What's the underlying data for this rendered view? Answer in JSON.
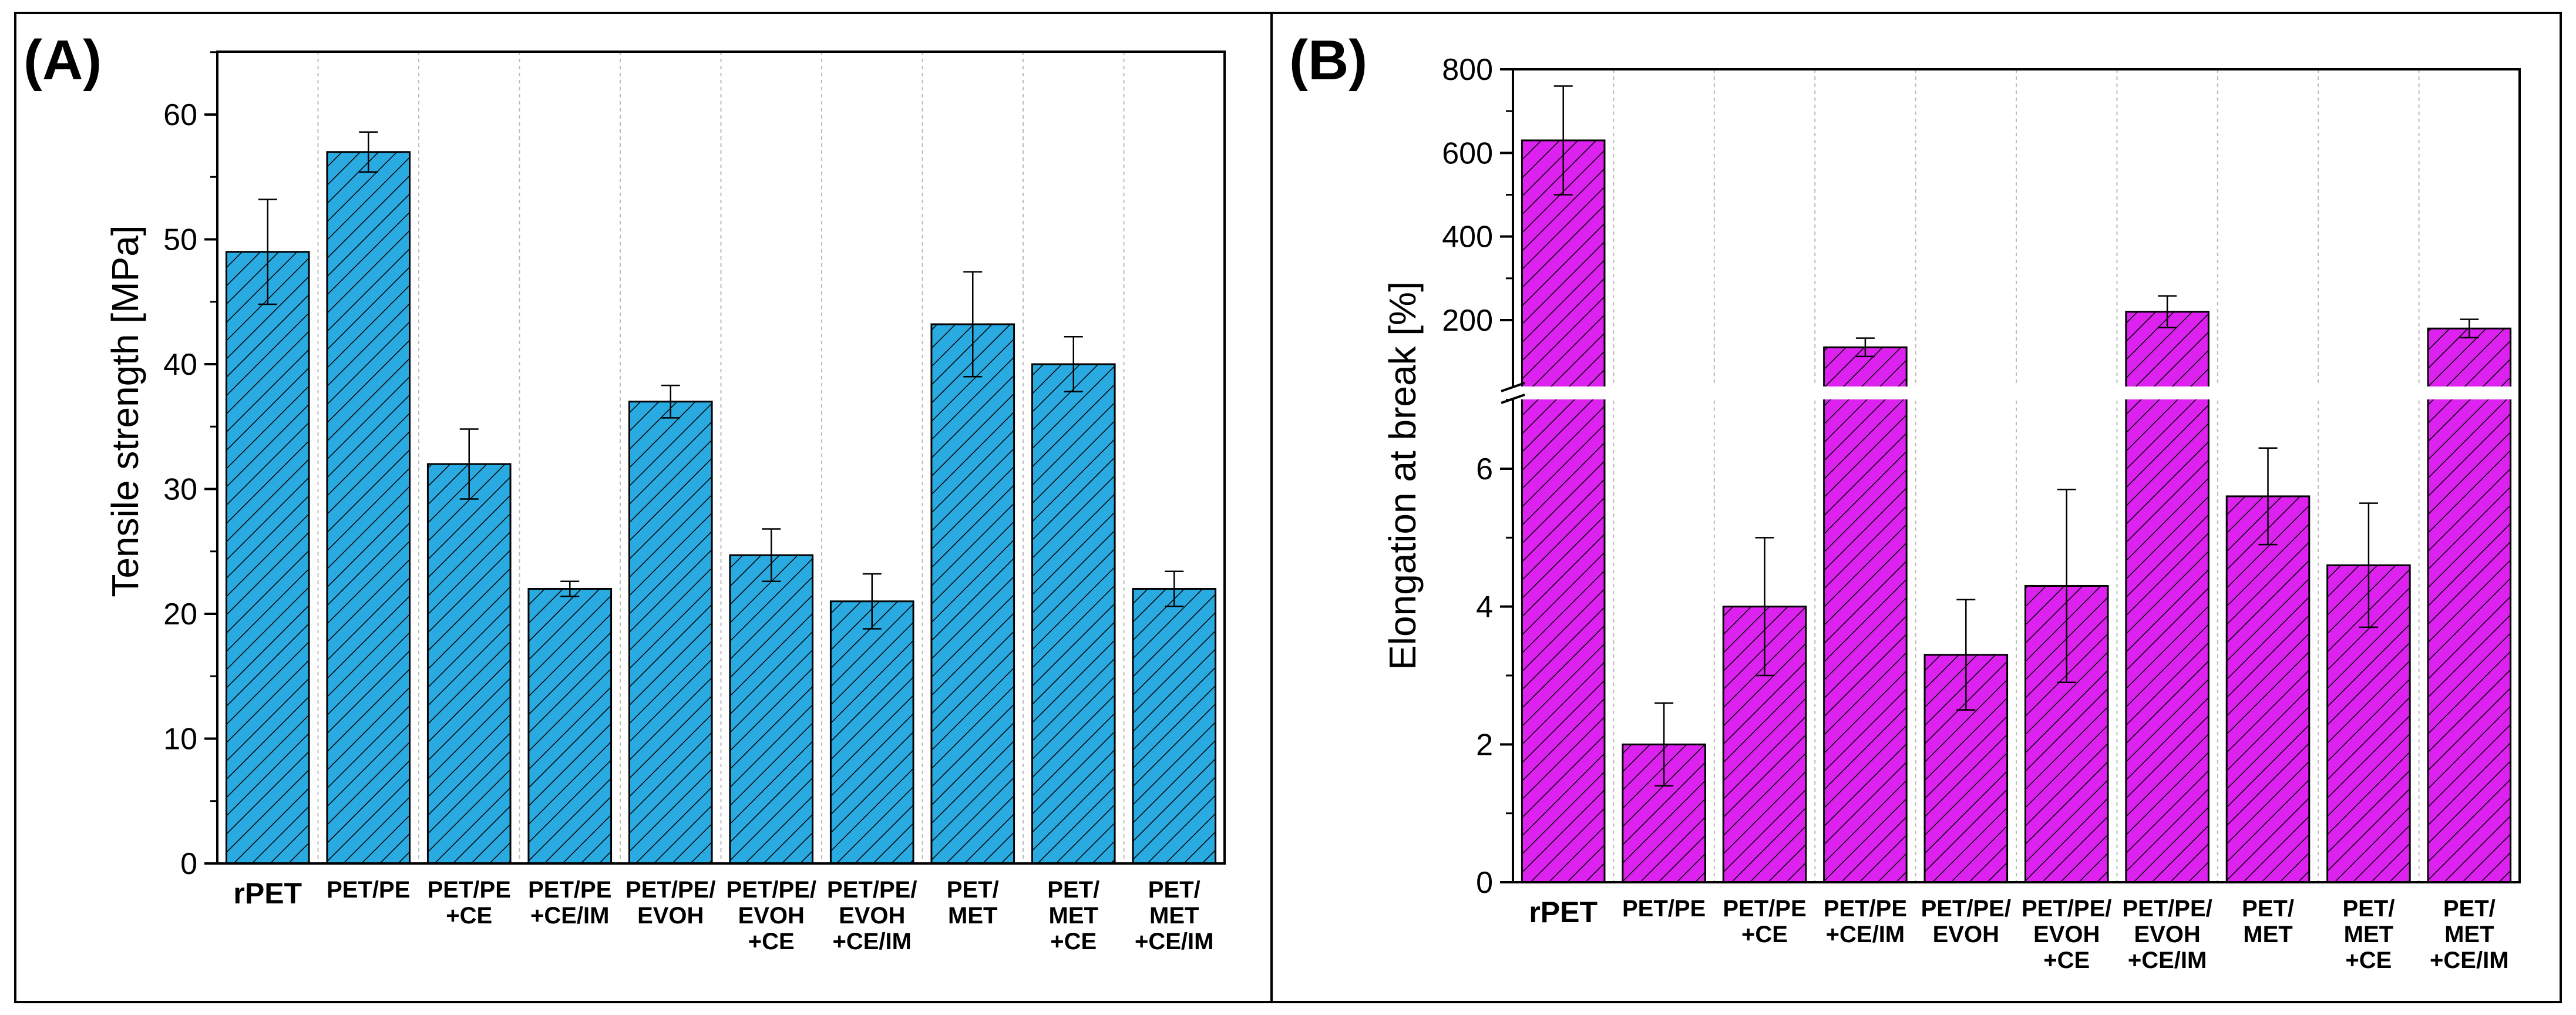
{
  "chart_data": [
    {
      "panel": "(A)",
      "type": "bar",
      "ylabel": "Tensile strength [MPa]",
      "ylim": [
        0,
        65
      ],
      "yticks": [
        0,
        10,
        20,
        30,
        40,
        50,
        60
      ],
      "categories": [
        [
          "rPET"
        ],
        [
          "PET/PE"
        ],
        [
          "PET/PE",
          "+CE"
        ],
        [
          "PET/PE",
          "+CE/IM"
        ],
        [
          "PET/PE/",
          "EVOH"
        ],
        [
          "PET/PE/",
          "EVOH",
          "+CE"
        ],
        [
          "PET/PE/",
          "EVOH",
          "+CE/IM"
        ],
        [
          "PET/",
          "MET"
        ],
        [
          "PET/",
          "MET",
          "+CE"
        ],
        [
          "PET/",
          "MET",
          "+CE/IM"
        ]
      ],
      "values": [
        49,
        57,
        32,
        22,
        37,
        24.7,
        21,
        43.2,
        40,
        22
      ],
      "errors": [
        4.2,
        1.6,
        2.8,
        0.6,
        1.3,
        2.1,
        2.2,
        4.2,
        2.2,
        1.4
      ],
      "bar_color": "#29abe2",
      "grid": "vertical-dotted"
    },
    {
      "panel": "(B)",
      "type": "bar",
      "ylabel": "Elongation at break [%]",
      "axis_break": true,
      "lower_ylim": [
        0,
        7
      ],
      "lower_yticks": [
        0,
        2,
        4,
        6
      ],
      "upper_ylim": [
        100,
        800
      ],
      "upper_yticks": [
        200,
        400,
        600,
        800
      ],
      "categories": [
        [
          "rPET"
        ],
        [
          "PET/PE"
        ],
        [
          "PET/PE",
          "+CE"
        ],
        [
          "PET/PE",
          "+CE/IM"
        ],
        [
          "PET/PE/",
          "EVOH"
        ],
        [
          "PET/PE/",
          "EVOH",
          "+CE"
        ],
        [
          "PET/PE/",
          "EVOH",
          "+CE/IM"
        ],
        [
          "PET/",
          "MET"
        ],
        [
          "PET/",
          "MET",
          "+CE"
        ],
        [
          "PET/",
          "MET",
          "+CE/IM"
        ]
      ],
      "values": [
        630,
        2.0,
        4.0,
        135,
        3.3,
        4.3,
        220,
        5.6,
        4.6,
        180
      ],
      "errors": [
        130,
        0.6,
        1.0,
        22,
        0.8,
        1.4,
        38,
        0.7,
        0.9,
        22
      ],
      "bar_color": "#dd22f0",
      "grid": "vertical-dotted"
    }
  ]
}
